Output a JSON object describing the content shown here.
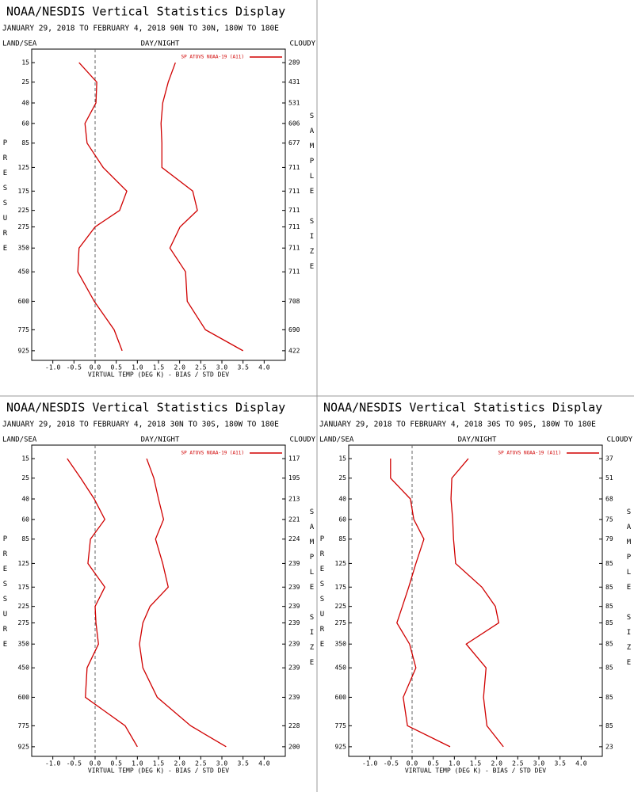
{
  "chart_data": [
    {
      "type": "line",
      "title": "NOAA/NESDIS Vertical Statistics Display",
      "subtitle": "JANUARY 29, 2018 TO FEBRUARY 4, 2018  90N TO 30N, 180W TO 180E",
      "header_left": "LAND/SEA",
      "header_center": "DAY/NIGHT",
      "header_right": "CLOUDY",
      "y_label": "PRESSURE",
      "y2_label": "SAMPLE SIZE",
      "x_label": "VIRTUAL TEMP (DEG K) - BIAS / STD DEV",
      "levels": [
        15,
        25,
        40,
        60,
        85,
        125,
        175,
        225,
        275,
        350,
        450,
        600,
        775,
        925
      ],
      "sample_size": [
        289,
        431,
        531,
        606,
        677,
        711,
        711,
        711,
        711,
        711,
        711,
        708,
        690,
        422
      ],
      "series": [
        {
          "name": "SP ATOVS NOAA-19 (A11)",
          "color": "#d00000",
          "bias": [
            -0.38,
            0.04,
            0.02,
            -0.24,
            -0.19,
            0.19,
            0.75,
            0.58,
            0.0,
            -0.38,
            -0.41,
            -0.02,
            0.45,
            0.64
          ],
          "std_dev": [
            1.9,
            1.73,
            1.6,
            1.56,
            1.58,
            1.58,
            2.31,
            2.42,
            2.01,
            1.77,
            2.14,
            2.18,
            2.61,
            3.5
          ]
        }
      ],
      "xlim": [
        -1.5,
        4.5
      ],
      "xticks": [
        {
          "value": -1,
          "label": "-1.0"
        },
        -0.5,
        {
          "value": 0,
          "label": "0.0"
        },
        0.5,
        {
          "value": 1,
          "label": "1.0"
        },
        1.5,
        {
          "value": 2,
          "label": "2.0"
        },
        2.5,
        {
          "value": 3,
          "label": "3.0"
        },
        3.5,
        {
          "value": 4,
          "label": "4.0"
        }
      ],
      "ylim": [
        10,
        1000
      ]
    },
    {
      "type": "line",
      "title": "NOAA/NESDIS Vertical Statistics Display",
      "subtitle": "JANUARY 29, 2018 TO FEBRUARY 4, 2018  30N TO 30S, 180W TO 180E",
      "header_left": "LAND/SEA",
      "header_center": "DAY/NIGHT",
      "header_right": "CLOUDY",
      "y_label": "PRESSURE",
      "y2_label": "SAMPLE SIZE",
      "x_label": "VIRTUAL TEMP (DEG K) - BIAS / STD DEV",
      "levels": [
        15,
        25,
        40,
        60,
        85,
        125,
        175,
        225,
        275,
        350,
        450,
        600,
        775,
        925
      ],
      "sample_size": [
        117,
        195,
        213,
        221,
        224,
        239,
        239,
        239,
        239,
        239,
        239,
        239,
        228,
        200
      ],
      "series": [
        {
          "name": "SP ATOVS NOAA-19 (A11)",
          "color": "#d00000",
          "bias": [
            -0.66,
            -0.34,
            -0.02,
            0.23,
            -0.11,
            -0.17,
            0.23,
            0.0,
            0.02,
            0.08,
            -0.19,
            -0.23,
            0.71,
            1.0
          ],
          "std_dev": [
            1.22,
            1.39,
            1.5,
            1.62,
            1.43,
            1.6,
            1.73,
            1.3,
            1.13,
            1.05,
            1.13,
            1.47,
            2.26,
            3.1
          ]
        }
      ],
      "xlim": [
        -1.5,
        4.5
      ],
      "xticks": [
        {
          "value": -1,
          "label": "-1.0"
        },
        -0.5,
        {
          "value": 0,
          "label": "0.0"
        },
        0.5,
        {
          "value": 1,
          "label": "1.0"
        },
        1.5,
        {
          "value": 2,
          "label": "2.0"
        },
        2.5,
        {
          "value": 3,
          "label": "3.0"
        },
        3.5,
        {
          "value": 4,
          "label": "4.0"
        }
      ],
      "ylim": [
        10,
        1000
      ]
    },
    {
      "type": "line",
      "title": "NOAA/NESDIS Vertical Statistics Display",
      "subtitle": "JANUARY 29, 2018 TO FEBRUARY 4, 2018  30S TO 90S, 180W TO 180E",
      "header_left": "LAND/SEA",
      "header_center": "DAY/NIGHT",
      "header_right": "CLOUDY",
      "y_label": "PRESSURE",
      "y2_label": "SAMPLE SIZE",
      "x_label": "VIRTUAL TEMP (DEG K) - BIAS / STD DEV",
      "levels": [
        15,
        25,
        40,
        60,
        85,
        125,
        175,
        225,
        275,
        350,
        450,
        600,
        775,
        925
      ],
      "sample_size": [
        37,
        51,
        68,
        75,
        79,
        85,
        85,
        85,
        85,
        85,
        85,
        85,
        85,
        23
      ],
      "series": [
        {
          "name": "SP ATOVS NOAA-19 (A11)",
          "color": "#d00000",
          "bias": [
            -0.51,
            -0.51,
            -0.04,
            0.04,
            0.28,
            0.09,
            -0.08,
            -0.23,
            -0.36,
            -0.06,
            0.09,
            -0.21,
            -0.11,
            0.9
          ],
          "std_dev": [
            1.33,
            0.94,
            0.92,
            0.96,
            0.98,
            1.03,
            1.65,
            1.97,
            2.05,
            1.28,
            1.75,
            1.69,
            1.77,
            2.16
          ]
        }
      ],
      "xlim": [
        -1.5,
        4.5
      ],
      "xticks": [
        {
          "value": -1,
          "label": "-1.0"
        },
        -0.5,
        {
          "value": 0,
          "label": "0.0"
        },
        0.5,
        {
          "value": 1,
          "label": "1.0"
        },
        1.5,
        {
          "value": 2,
          "label": "2.0"
        },
        2.5,
        {
          "value": 3,
          "label": "3.0"
        },
        3.5,
        {
          "value": 4,
          "label": "4.0"
        }
      ],
      "ylim": [
        10,
        1000
      ]
    }
  ]
}
